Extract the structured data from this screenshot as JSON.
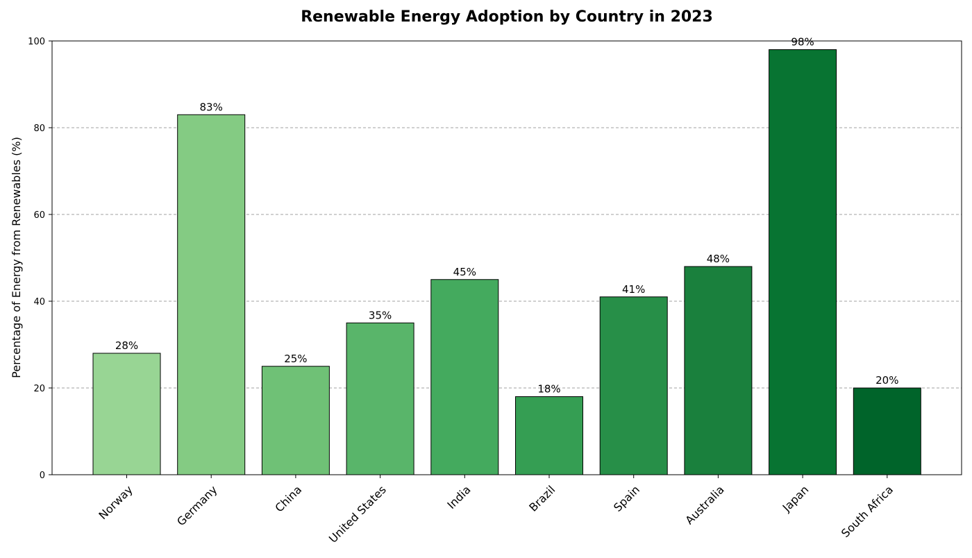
{
  "chart_data": {
    "type": "bar",
    "title": "Renewable Energy Adoption by Country in 2023",
    "xlabel": "",
    "ylabel": "Percentage of Energy from Renewables (%)",
    "categories": [
      "Norway",
      "Germany",
      "China",
      "United States",
      "India",
      "Brazil",
      "Spain",
      "Australia",
      "Japan",
      "South Africa"
    ],
    "values": [
      28,
      83,
      25,
      35,
      45,
      18,
      41,
      48,
      98,
      20
    ],
    "data_labels": [
      "28%",
      "83%",
      "25%",
      "35%",
      "45%",
      "18%",
      "41%",
      "48%",
      "98%",
      "20%"
    ],
    "ylim": [
      0,
      100
    ],
    "yticks": [
      0,
      20,
      40,
      60,
      80,
      100
    ],
    "grid": "y-axis dashed",
    "colors": [
      "#98d594",
      "#84cb83",
      "#6fc176",
      "#59b56a",
      "#44aa5e",
      "#359e53",
      "#278f48",
      "#1a803d",
      "#087432",
      "#00642a"
    ]
  }
}
